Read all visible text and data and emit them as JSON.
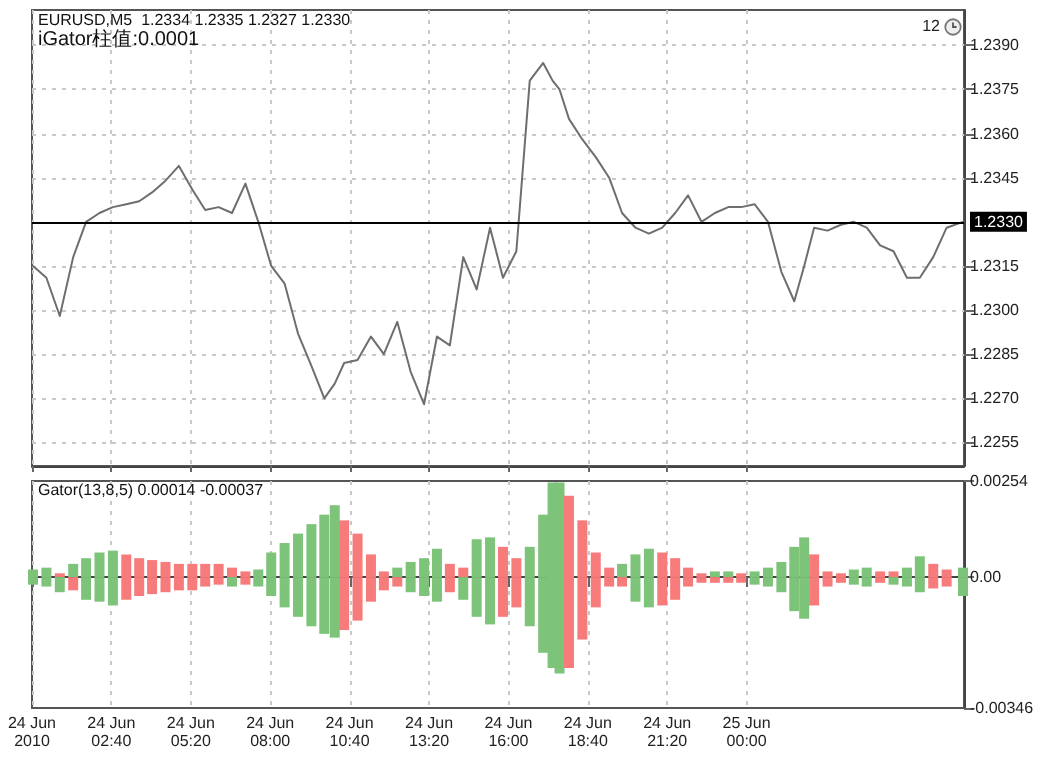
{
  "chart_data": [
    {
      "type": "line",
      "title": "EURUSD,M5  1.2334 1.2335 1.2327 1.2330",
      "subtitle": "iGator柱值:0.0001",
      "annotations": [
        "12"
      ],
      "x": [
        "2010-06-24T00:02",
        "2010-06-24T00:29",
        "2010-06-24T00:56",
        "2010-06-24T01:23",
        "2010-06-24T01:49",
        "2010-06-24T02:16",
        "2010-06-24T02:43",
        "2010-06-24T03:10",
        "2010-06-24T03:36",
        "2010-06-24T04:02",
        "2010-06-24T04:29",
        "2010-06-24T04:56",
        "2010-06-24T05:23",
        "2010-06-24T05:49",
        "2010-06-24T06:16",
        "2010-06-24T06:43",
        "2010-06-24T07:10",
        "2010-06-24T07:36",
        "2010-06-24T08:02",
        "2010-06-24T08:29",
        "2010-06-24T08:56",
        "2010-06-24T09:23",
        "2010-06-24T09:49",
        "2010-06-24T10:10",
        "2010-06-24T10:29",
        "2010-06-24T10:56",
        "2010-06-24T11:23",
        "2010-06-24T11:49",
        "2010-06-24T12:16",
        "2010-06-24T12:43",
        "2010-06-24T13:10",
        "2010-06-24T13:36",
        "2010-06-24T14:02",
        "2010-06-24T14:29",
        "2010-06-24T14:56",
        "2010-06-24T15:23",
        "2010-06-24T15:49",
        "2010-06-24T16:16",
        "2010-06-24T16:43",
        "2010-06-24T17:10",
        "2010-06-24T17:29",
        "2010-06-24T17:43",
        "2010-06-24T18:02",
        "2010-06-24T18:29",
        "2010-06-24T18:56",
        "2010-06-24T19:23",
        "2010-06-24T19:49",
        "2010-06-24T20:16",
        "2010-06-24T20:43",
        "2010-06-24T21:10",
        "2010-06-24T21:36",
        "2010-06-24T22:02",
        "2010-06-24T22:29",
        "2010-06-24T22:56",
        "2010-06-24T23:23",
        "2010-06-24T23:49",
        "2010-06-25T00:16",
        "2010-06-25T00:43",
        "2010-06-25T01:10",
        "2010-06-25T01:36",
        "2010-06-25T01:56",
        "2010-06-25T02:16",
        "2010-06-25T02:43",
        "2010-06-25T03:10",
        "2010-06-25T03:36",
        "2010-06-25T04:02",
        "2010-06-25T04:29",
        "2010-06-25T04:56",
        "2010-06-25T05:23",
        "2010-06-25T05:49",
        "2010-06-25T06:16",
        "2010-06-25T06:43",
        "2010-06-25T07:16"
      ],
      "series": [
        {
          "color": "#6e6e6e",
          "values": [
            1.2315,
            1.2311,
            1.2298,
            1.2318,
            1.233,
            1.2333,
            1.2335,
            1.2336,
            1.2337,
            1.234,
            1.2344,
            1.2349,
            1.2341,
            1.2334,
            1.2335,
            1.2333,
            1.2343,
            1.233,
            1.2315,
            1.2309,
            1.2292,
            1.2281,
            1.227,
            1.2275,
            1.2282,
            1.2283,
            1.2291,
            1.2285,
            1.2296,
            1.2279,
            1.2268,
            1.2291,
            1.2288,
            1.2318,
            1.2307,
            1.2328,
            1.2311,
            1.232,
            1.2378,
            1.2384,
            1.2378,
            1.2375,
            1.2365,
            1.2358,
            1.2352,
            1.2345,
            1.2333,
            1.2328,
            1.2326,
            1.2328,
            1.2333,
            1.2339,
            1.233,
            1.2333,
            1.2335,
            1.2335,
            1.2336,
            1.233,
            1.2313,
            1.2303,
            1.2315,
            1.2328,
            1.2327,
            1.2329,
            1.233,
            1.2328,
            1.2322,
            1.232,
            1.2311,
            1.2311,
            1.2318,
            1.2328,
            1.233
          ]
        }
      ],
      "xlim": [
        "2010-06-24T00:00",
        "2010-06-25T07:18"
      ],
      "xticks": [
        {
          "value": "2010-06-24T00:00",
          "label": null
        },
        {
          "value": "2010-06-24T02:40",
          "label": null
        },
        {
          "value": "2010-06-24T05:20",
          "label": null
        },
        {
          "value": "2010-06-24T08:00",
          "label": null
        },
        {
          "value": "2010-06-24T10:40",
          "label": null
        },
        {
          "value": "2010-06-24T13:20",
          "label": null
        },
        {
          "value": "2010-06-24T16:00",
          "label": null
        },
        {
          "value": "2010-06-24T18:40",
          "label": null
        },
        {
          "value": "2010-06-24T21:20",
          "label": null
        },
        {
          "value": "2010-06-25T00:00",
          "label": null
        }
      ],
      "ylim": [
        1.2247,
        1.2402
      ],
      "yticks": [
        {
          "value": 1.2255,
          "label": "1.2255"
        },
        {
          "value": 1.227,
          "label": "1.2270"
        },
        {
          "value": 1.2285,
          "label": "1.2285"
        },
        {
          "value": 1.23,
          "label": "1.2300"
        },
        {
          "value": 1.2315,
          "label": "1.2315"
        },
        {
          "value": 1.2345,
          "label": "1.2345"
        },
        {
          "value": 1.236,
          "label": "1.2360"
        },
        {
          "value": 1.2375,
          "label": "1.2375"
        },
        {
          "value": 1.239,
          "label": "1.2390"
        }
      ],
      "ref_lines": [
        {
          "axis": "y",
          "value": 1.233,
          "label": "1.2330",
          "color": "#000000"
        }
      ],
      "grid": true,
      "tick_labels": "y",
      "marker": "none"
    },
    {
      "type": "bar",
      "title": "Gator(13,8,5) 0.00014 -0.00037",
      "stacked": true,
      "x": [
        "2010-06-24T00:02",
        "2010-06-24T00:29",
        "2010-06-24T00:56",
        "2010-06-24T01:23",
        "2010-06-24T01:49",
        "2010-06-24T02:16",
        "2010-06-24T02:43",
        "2010-06-24T03:10",
        "2010-06-24T03:36",
        "2010-06-24T04:02",
        "2010-06-24T04:29",
        "2010-06-24T04:56",
        "2010-06-24T05:23",
        "2010-06-24T05:49",
        "2010-06-24T06:16",
        "2010-06-24T06:43",
        "2010-06-24T07:10",
        "2010-06-24T07:36",
        "2010-06-24T08:02",
        "2010-06-24T08:29",
        "2010-06-24T08:56",
        "2010-06-24T09:23",
        "2010-06-24T09:49",
        "2010-06-24T10:10",
        "2010-06-24T10:29",
        "2010-06-24T10:56",
        "2010-06-24T11:23",
        "2010-06-24T11:49",
        "2010-06-24T12:16",
        "2010-06-24T12:43",
        "2010-06-24T13:10",
        "2010-06-24T13:36",
        "2010-06-24T14:02",
        "2010-06-24T14:29",
        "2010-06-24T14:56",
        "2010-06-24T15:23",
        "2010-06-24T15:49",
        "2010-06-24T16:16",
        "2010-06-24T16:43",
        "2010-06-24T17:10",
        "2010-06-24T17:29",
        "2010-06-24T17:43",
        "2010-06-24T18:02",
        "2010-06-24T18:29",
        "2010-06-24T18:56",
        "2010-06-24T19:23",
        "2010-06-24T19:49",
        "2010-06-24T20:16",
        "2010-06-24T20:43",
        "2010-06-24T21:10",
        "2010-06-24T21:36",
        "2010-06-24T22:02",
        "2010-06-24T22:29",
        "2010-06-24T22:56",
        "2010-06-24T23:23",
        "2010-06-24T23:49",
        "2010-06-25T00:16",
        "2010-06-25T00:43",
        "2010-06-25T01:10",
        "2010-06-25T01:36",
        "2010-06-25T01:56",
        "2010-06-25T02:16",
        "2010-06-25T02:43",
        "2010-06-25T03:10",
        "2010-06-25T03:36",
        "2010-06-25T04:02",
        "2010-06-25T04:29",
        "2010-06-25T04:56",
        "2010-06-25T05:23",
        "2010-06-25T05:49",
        "2010-06-25T06:16",
        "2010-06-25T06:43",
        "2010-06-25T07:16"
      ],
      "series": [
        {
          "values": [
            0.0002,
            0.00025,
            0.0001,
            0.00035,
            0.0005,
            0.00065,
            0.0007,
            0.0006,
            0.0005,
            0.00045,
            0.0004,
            0.00035,
            0.00035,
            0.00035,
            0.00035,
            0.00025,
            0.00015,
            0.0002,
            0.00065,
            0.0009,
            0.00115,
            0.0014,
            0.00165,
            0.0019,
            0.0015,
            0.00115,
            0.0006,
            0.00015,
            0.00025,
            0.0004,
            0.0005,
            0.00075,
            0.00035,
            0.00025,
            0.001,
            0.00105,
            0.0008,
            0.0005,
            0.0008,
            0.00165,
            0.0025,
            0.0025,
            0.00215,
            0.0015,
            0.00065,
            0.00025,
            0.00035,
            0.0006,
            0.00075,
            0.00065,
            0.0005,
            0.00025,
            0.0001,
            0.00015,
            0.00015,
            0.0001,
            0.00015,
            0.00025,
            0.0004,
            0.0008,
            0.00105,
            0.0006,
            0.00015,
            0.0001,
            0.0002,
            0.00025,
            0.00015,
            0.00015,
            0.00025,
            0.00055,
            0.00035,
            0.0002,
            0.00025
          ],
          "colors": [
            "#7dc47a",
            "#7dc47a",
            "#f77b7b",
            "#7dc47a",
            "#7dc47a",
            "#7dc47a",
            "#7dc47a",
            "#f77b7b",
            "#f77b7b",
            "#f77b7b",
            "#f77b7b",
            "#f77b7b",
            "#f77b7b",
            "#f77b7b",
            "#f77b7b",
            "#f77b7b",
            "#f77b7b",
            "#7dc47a",
            "#7dc47a",
            "#7dc47a",
            "#7dc47a",
            "#7dc47a",
            "#7dc47a",
            "#7dc47a",
            "#f77b7b",
            "#f77b7b",
            "#f77b7b",
            "#f77b7b",
            "#7dc47a",
            "#7dc47a",
            "#7dc47a",
            "#7dc47a",
            "#f77b7b",
            "#f77b7b",
            "#7dc47a",
            "#7dc47a",
            "#f77b7b",
            "#f77b7b",
            "#7dc47a",
            "#7dc47a",
            "#7dc47a",
            "#7dc47a",
            "#f77b7b",
            "#f77b7b",
            "#f77b7b",
            "#f77b7b",
            "#7dc47a",
            "#7dc47a",
            "#7dc47a",
            "#f77b7b",
            "#f77b7b",
            "#f77b7b",
            "#f77b7b",
            "#7dc47a",
            "#7dc47a",
            "#f77b7b",
            "#7dc47a",
            "#7dc47a",
            "#7dc47a",
            "#7dc47a",
            "#7dc47a",
            "#f77b7b",
            "#f77b7b",
            "#f77b7b",
            "#7dc47a",
            "#7dc47a",
            "#f77b7b",
            "#f77b7b",
            "#7dc47a",
            "#7dc47a",
            "#f77b7b",
            "#f77b7b",
            "#7dc47a"
          ]
        },
        {
          "values": [
            -0.0002,
            -0.00025,
            -0.0004,
            -0.00035,
            -0.0006,
            -0.00065,
            -0.00075,
            -0.0006,
            -0.0005,
            -0.00045,
            -0.0004,
            -0.00035,
            -0.00035,
            -0.00025,
            -0.0002,
            -0.00025,
            -0.0002,
            -0.00025,
            -0.0005,
            -0.0008,
            -0.00105,
            -0.0013,
            -0.0015,
            -0.0016,
            -0.0014,
            -0.00115,
            -0.00065,
            -0.00035,
            -0.00025,
            -0.0004,
            -0.0005,
            -0.00065,
            -0.0004,
            -0.0006,
            -0.00105,
            -0.00125,
            -0.00105,
            -0.0008,
            -0.0013,
            -0.002,
            -0.0024,
            -0.00255,
            -0.0024,
            -0.00165,
            -0.0008,
            -0.00025,
            -0.00025,
            -0.00065,
            -0.0008,
            -0.00075,
            -0.0006,
            -0.00025,
            -0.00015,
            -0.00015,
            -0.00015,
            -0.00015,
            -0.0002,
            -0.00025,
            -0.0004,
            -0.0009,
            -0.0011,
            -0.00075,
            -0.00025,
            -0.00015,
            -0.0002,
            -0.00025,
            -0.00015,
            -0.0002,
            -0.00025,
            -0.0004,
            -0.0003,
            -0.00025,
            -0.0005
          ],
          "colors": [
            "#7dc47a",
            "#7dc47a",
            "#7dc47a",
            "#f77b7b",
            "#7dc47a",
            "#7dc47a",
            "#7dc47a",
            "#f77b7b",
            "#f77b7b",
            "#f77b7b",
            "#f77b7b",
            "#f77b7b",
            "#f77b7b",
            "#f77b7b",
            "#f77b7b",
            "#7dc47a",
            "#f77b7b",
            "#7dc47a",
            "#7dc47a",
            "#7dc47a",
            "#7dc47a",
            "#7dc47a",
            "#7dc47a",
            "#7dc47a",
            "#f77b7b",
            "#f77b7b",
            "#f77b7b",
            "#f77b7b",
            "#f77b7b",
            "#7dc47a",
            "#7dc47a",
            "#7dc47a",
            "#f77b7b",
            "#7dc47a",
            "#7dc47a",
            "#7dc47a",
            "#f77b7b",
            "#f77b7b",
            "#7dc47a",
            "#7dc47a",
            "#7dc47a",
            "#7dc47a",
            "#f77b7b",
            "#f77b7b",
            "#f77b7b",
            "#f77b7b",
            "#f77b7b",
            "#7dc47a",
            "#7dc47a",
            "#f77b7b",
            "#f77b7b",
            "#f77b7b",
            "#f77b7b",
            "#f77b7b",
            "#f77b7b",
            "#f77b7b",
            "#7dc47a",
            "#7dc47a",
            "#7dc47a",
            "#7dc47a",
            "#7dc47a",
            "#f77b7b",
            "#f77b7b",
            "#f77b7b",
            "#7dc47a",
            "#7dc47a",
            "#f77b7b",
            "#7dc47a",
            "#7dc47a",
            "#7dc47a",
            "#f77b7b",
            "#f77b7b",
            "#7dc47a"
          ]
        }
      ],
      "xlim": [
        "2010-06-24T00:00",
        "2010-06-25T07:18"
      ],
      "xticks": [
        {
          "value": "2010-06-24T00:00",
          "label": "24 Jun 2010"
        },
        {
          "value": "2010-06-24T02:40",
          "label": "24 Jun 02:40"
        },
        {
          "value": "2010-06-24T05:20",
          "label": "24 Jun 05:20"
        },
        {
          "value": "2010-06-24T08:00",
          "label": "24 Jun 08:00"
        },
        {
          "value": "2010-06-24T10:40",
          "label": "24 Jun 10:40"
        },
        {
          "value": "2010-06-24T13:20",
          "label": "24 Jun 13:20"
        },
        {
          "value": "2010-06-24T16:00",
          "label": "24 Jun 16:00"
        },
        {
          "value": "2010-06-24T18:40",
          "label": "24 Jun 18:40"
        },
        {
          "value": "2010-06-24T21:20",
          "label": "24 Jun 21:20"
        },
        {
          "value": "2010-06-25T00:00",
          "label": "25 Jun 00:00"
        }
      ],
      "ylim": [
        -0.00346,
        0.00254
      ],
      "yticks": [
        {
          "value": 0.00254,
          "label": "0.00254"
        },
        {
          "value": 0,
          "label": "0.00"
        },
        {
          "value": -0.00346,
          "label": "-0.00346"
        }
      ],
      "grid": "x"
    }
  ]
}
